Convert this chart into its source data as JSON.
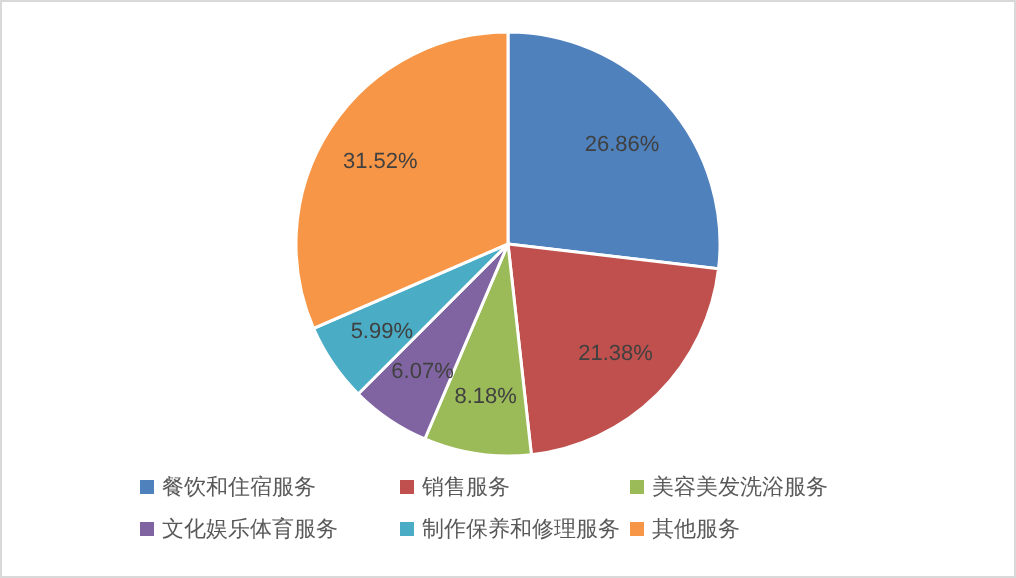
{
  "chart_data": {
    "type": "pie",
    "categories": [
      "餐饮和住宿服务",
      "销售服务",
      "美容美发洗浴服务",
      "文化娱乐体育服务",
      "制作保养和修理服务",
      "其他服务"
    ],
    "values": [
      26.86,
      21.38,
      8.18,
      6.07,
      5.99,
      31.52
    ],
    "colors": [
      "#4f81bd",
      "#c0504d",
      "#9bbb59",
      "#8064a2",
      "#4bacc6",
      "#f79646"
    ],
    "value_labels": [
      "26.86%",
      "21.38%",
      "8.18%",
      "6.07%",
      "5.99%",
      "31.52%"
    ],
    "legend": "bottom"
  }
}
